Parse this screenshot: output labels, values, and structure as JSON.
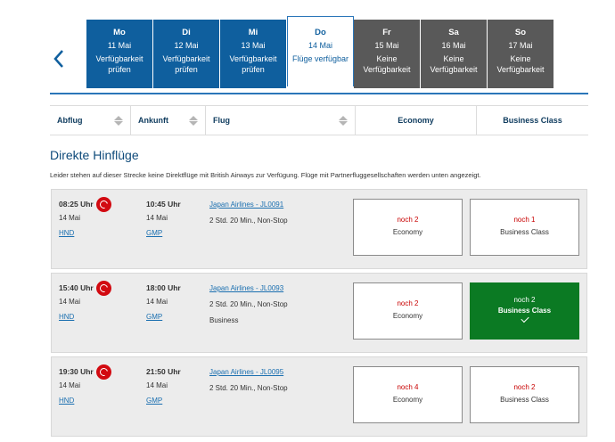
{
  "days": [
    {
      "name": "Mo",
      "date": "11 Mai",
      "status": "Verfügbarkeit prüfen",
      "state": "check"
    },
    {
      "name": "Di",
      "date": "12 Mai",
      "status": "Verfügbarkeit prüfen",
      "state": "check"
    },
    {
      "name": "Mi",
      "date": "13 Mai",
      "status": "Verfügbarkeit prüfen",
      "state": "check"
    },
    {
      "name": "Do",
      "date": "14 Mai",
      "status": "Flüge verfügbar",
      "state": "selected"
    },
    {
      "name": "Fr",
      "date": "15 Mai",
      "status": "Keine Verfügbarkeit",
      "state": "none"
    },
    {
      "name": "Sa",
      "date": "16 Mai",
      "status": "Keine Verfügbarkeit",
      "state": "none"
    },
    {
      "name": "So",
      "date": "17 Mai",
      "status": "Keine Verfügbarkeit",
      "state": "none"
    }
  ],
  "sort": {
    "departure": "Abflug",
    "arrival": "Ankunft",
    "flight": "Flug",
    "economy": "Economy",
    "business": "Business Class"
  },
  "section": {
    "title": "Direkte Hinflüge",
    "note": "Leider stehen auf dieser Strecke keine Direktflüge mit British Airways zur Verfügung. Flüge mit Partnerfluggesellschaften werden unten angezeigt."
  },
  "flights": [
    {
      "dep_time": "08:25 Uhr",
      "dep_date": "14 Mai",
      "dep_airport": "HND",
      "arr_time": "10:45 Uhr",
      "arr_date": "14 Mai",
      "arr_airport": "GMP",
      "flight": "Japan Airlines - JL0091",
      "duration": "2 Std. 20 Min., Non-Stop",
      "cabin": "",
      "economy": {
        "seats": "noch 2",
        "label": "Economy"
      },
      "business": {
        "seats": "noch 1",
        "label": "Business Class",
        "selected": false
      }
    },
    {
      "dep_time": "15:40 Uhr",
      "dep_date": "14 Mai",
      "dep_airport": "HND",
      "arr_time": "18:00 Uhr",
      "arr_date": "14 Mai",
      "arr_airport": "GMP",
      "flight": "Japan Airlines - JL0093",
      "duration": "2 Std. 20 Min., Non-Stop",
      "cabin": "Business",
      "economy": {
        "seats": "noch 2",
        "label": "Economy"
      },
      "business": {
        "seats": "noch 2",
        "label": "Business Class",
        "selected": true
      }
    },
    {
      "dep_time": "19:30 Uhr",
      "dep_date": "14 Mai",
      "dep_airport": "HND",
      "arr_time": "21:50 Uhr",
      "arr_date": "14 Mai",
      "arr_airport": "GMP",
      "flight": "Japan Airlines - JL0095",
      "duration": "2 Std. 20 Min., Non-Stop",
      "cabin": "",
      "economy": {
        "seats": "noch 4",
        "label": "Economy"
      },
      "business": {
        "seats": "noch 2",
        "label": "Business Class",
        "selected": false
      }
    }
  ],
  "colors": {
    "available_blue": "#0f5f9e",
    "unavailable_grey": "#595959",
    "selected_green": "#0b7a23",
    "seats_red": "#c80000"
  }
}
